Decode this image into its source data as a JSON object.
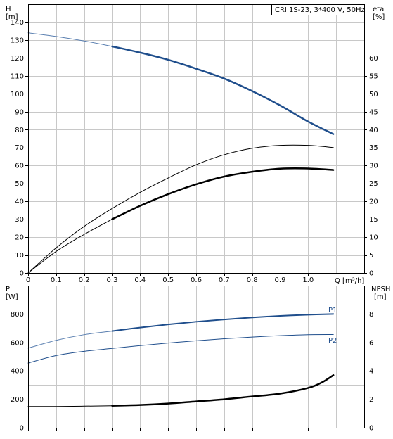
{
  "chart_data": [
    {
      "type": "line",
      "title": "CRI 1S-23, 3*400 V, 50Hz",
      "xlabel": "Q [m³/h]",
      "ylabel": "H\n[m]",
      "ylabel_right": "eta\n[%]",
      "xlim": [
        0,
        1.2
      ],
      "ylim": [
        0,
        150
      ],
      "ylim_right": [
        0,
        75
      ],
      "x_ticks": [
        "0",
        "0.1",
        "0.2",
        "0.3",
        "0.4",
        "0.5",
        "0.6",
        "0.7",
        "0.8",
        "0.9",
        "1.0"
      ],
      "y_ticks": [
        "0",
        "10",
        "20",
        "30",
        "40",
        "50",
        "60",
        "70",
        "80",
        "90",
        "100",
        "110",
        "120",
        "130",
        "140"
      ],
      "y_ticks_right": [
        "0",
        "5",
        "10",
        "15",
        "20",
        "25",
        "30",
        "35",
        "40",
        "45",
        "50",
        "55",
        "60"
      ],
      "grid": true,
      "series": [
        {
          "axis": "left",
          "color": "#1f4e8c",
          "width": 2.5,
          "x": [
            0.3,
            0.4,
            0.5,
            0.6,
            0.7,
            0.8,
            0.9,
            1.0,
            1.09
          ],
          "y": [
            126.5,
            123,
            119,
            114,
            108.5,
            101.5,
            93.5,
            84.5,
            77.5
          ]
        },
        {
          "axis": "left",
          "color": "#5a7fb0",
          "width": 1,
          "x": [
            0,
            0.1,
            0.2,
            0.3
          ],
          "y": [
            134,
            132,
            129.5,
            126.5
          ]
        },
        {
          "axis": "right",
          "color": "#000000",
          "width": 1,
          "x": [
            0,
            0.1,
            0.2,
            0.3,
            0.4,
            0.5,
            0.6,
            0.7,
            0.8,
            0.9,
            1.0,
            1.09
          ],
          "y": [
            0,
            7,
            13,
            18,
            22.5,
            26.5,
            30.2,
            33,
            34.8,
            35.6,
            35.6,
            35
          ]
        },
        {
          "axis": "left",
          "color": "#000000",
          "width": 2.5,
          "x": [
            0.3,
            0.4,
            0.5,
            0.6,
            0.7,
            0.8,
            0.9,
            1.0,
            1.09
          ],
          "y": [
            30,
            37.5,
            44,
            49.5,
            53.8,
            56.5,
            58.2,
            58.3,
            57.5
          ]
        },
        {
          "axis": "left",
          "color": "#000000",
          "width": 1,
          "x": [
            0,
            0.1,
            0.2,
            0.3
          ],
          "y": [
            0,
            12,
            21.5,
            30
          ]
        }
      ]
    },
    {
      "type": "line",
      "xlabel": "",
      "ylabel": "P\n[W]",
      "ylabel_right": "NPSH\n[m]",
      "xlim": [
        0,
        1.2
      ],
      "ylim": [
        0,
        1000
      ],
      "ylim_right": [
        0,
        10
      ],
      "y_ticks": [
        "0",
        "200",
        "400",
        "600",
        "800"
      ],
      "y_ticks_right": [
        "0",
        "2",
        "4",
        "6",
        "8"
      ],
      "grid": true,
      "series": [
        {
          "name": "P1",
          "axis": "left",
          "color": "#1f4e8c",
          "width": 2,
          "x": [
            0.3,
            0.4,
            0.5,
            0.6,
            0.7,
            0.8,
            0.9,
            1.0,
            1.09
          ],
          "y": [
            680,
            705,
            727,
            746,
            762,
            776,
            787,
            795,
            800
          ]
        },
        {
          "axis": "left",
          "color": "#5a7fb0",
          "width": 1,
          "x": [
            0,
            0.1,
            0.2,
            0.3
          ],
          "y": [
            560,
            615,
            655,
            680
          ]
        },
        {
          "name": "P2",
          "axis": "left",
          "color": "#1f4e8c",
          "width": 1,
          "x": [
            0,
            0.1,
            0.2,
            0.3,
            0.4,
            0.5,
            0.6,
            0.7,
            0.8,
            0.9,
            1.0,
            1.09
          ],
          "y": [
            455,
            508,
            538,
            558,
            578,
            596,
            612,
            626,
            638,
            648,
            655,
            656
          ]
        },
        {
          "axis": "right",
          "color": "#000000",
          "width": 1,
          "x": [
            0,
            0.1,
            0.2,
            0.3
          ],
          "y": [
            1.5,
            1.5,
            1.52,
            1.55
          ]
        },
        {
          "axis": "right",
          "color": "#000000",
          "width": 2.5,
          "x": [
            0.3,
            0.4,
            0.5,
            0.6,
            0.7,
            0.8,
            0.9,
            1.0,
            1.05,
            1.09
          ],
          "y": [
            1.55,
            1.6,
            1.7,
            1.85,
            2.0,
            2.2,
            2.4,
            2.8,
            3.2,
            3.7
          ]
        }
      ]
    }
  ]
}
